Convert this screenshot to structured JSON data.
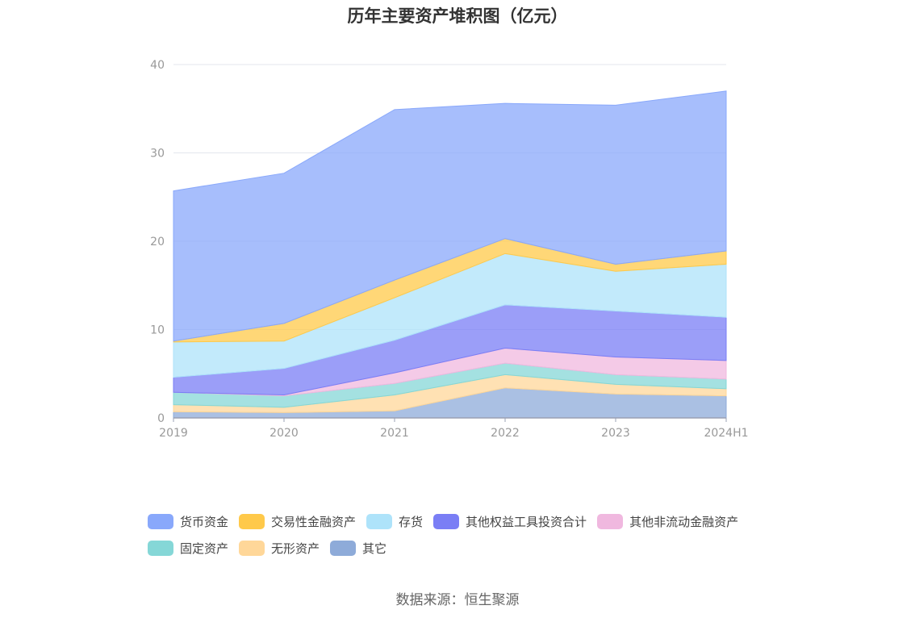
{
  "chart_data": {
    "type": "area",
    "stacked": true,
    "title": "历年主要资产堆积图（亿元）",
    "categories": [
      "2019",
      "2020",
      "2021",
      "2022",
      "2023",
      "2024H1"
    ],
    "ylim": [
      0,
      40
    ],
    "yticks": [
      "0",
      "10",
      "20",
      "30",
      "40"
    ],
    "grid": true,
    "legend_position": "bottom",
    "series": [
      {
        "name": "其它",
        "color": "#8eabd9",
        "values": [
          0.7,
          0.6,
          0.8,
          3.4,
          2.7,
          2.5
        ]
      },
      {
        "name": "无形资产",
        "color": "#ffd799",
        "values": [
          0.8,
          0.6,
          1.8,
          1.5,
          1.1,
          0.8
        ]
      },
      {
        "name": "固定资产",
        "color": "#85d7d7",
        "values": [
          1.4,
          1.3,
          1.3,
          1.3,
          1.1,
          1.1
        ]
      },
      {
        "name": "其他非流动金融资产",
        "color": "#f0b8df",
        "values": [
          0.0,
          0.1,
          1.2,
          1.7,
          2.0,
          2.1
        ]
      },
      {
        "name": "其他权益工具投资合计",
        "color": "#7a7ef5",
        "values": [
          1.7,
          3.0,
          3.7,
          4.9,
          5.2,
          4.9
        ]
      },
      {
        "name": "存货",
        "color": "#aee3fa",
        "values": [
          4.0,
          3.1,
          4.8,
          5.8,
          4.5,
          6.0
        ]
      },
      {
        "name": "交易性金融资产",
        "color": "#ffc94a",
        "values": [
          0.1,
          2.0,
          2.0,
          1.7,
          0.8,
          1.5
        ]
      },
      {
        "name": "货币资金",
        "color": "#89a8fb",
        "values": [
          17.0,
          17.0,
          19.3,
          15.3,
          18.0,
          18.1
        ]
      }
    ]
  },
  "legend": {
    "row1": [
      "货币资金",
      "交易性金融资产",
      "存货",
      "其他权益工具投资合计",
      "其他非流动金融资产"
    ],
    "row2": [
      "固定资产",
      "无形资产",
      "其它"
    ]
  },
  "source": "数据来源：恒生聚源"
}
